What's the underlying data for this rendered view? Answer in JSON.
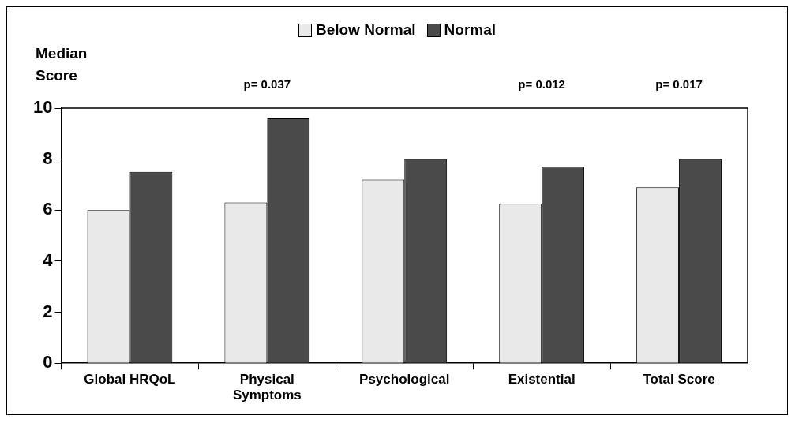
{
  "chart_data": {
    "type": "bar",
    "ylabel": "Median Score",
    "categories": [
      "Global HRQoL",
      "Physical Symptoms",
      "Psychological",
      "Existential",
      "Total Score"
    ],
    "series": [
      {
        "name": "Below Normal",
        "color": "#e9e9e9",
        "values": [
          6.0,
          6.3,
          7.2,
          6.25,
          6.9
        ]
      },
      {
        "name": "Normal",
        "color": "#4a4a4a",
        "values": [
          7.5,
          9.6,
          8.0,
          7.7,
          8.0
        ]
      }
    ],
    "ylim": [
      0,
      10
    ],
    "yticks": [
      0,
      2,
      4,
      6,
      8,
      10
    ],
    "grid": false,
    "legend": "top",
    "annotations": [
      "p= 0.037",
      "p= 0.012",
      "p= 0.017"
    ]
  }
}
